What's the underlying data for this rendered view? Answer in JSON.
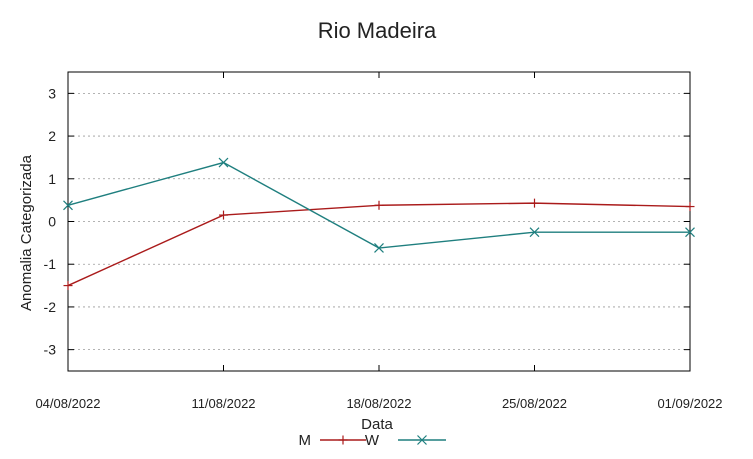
{
  "chart_data": {
    "type": "line",
    "title": "Rio Madeira",
    "xlabel": "Data",
    "ylabel": "Anomalia Categorizada",
    "x": [
      "04/08/2022",
      "11/08/2022",
      "18/08/2022",
      "25/08/2022",
      "01/09/2022"
    ],
    "yticks": [
      "3",
      "2",
      "1",
      "0",
      "-1",
      "-2",
      "-3"
    ],
    "ylim": [
      -3.5,
      3.5
    ],
    "grid": true,
    "legend_position": "bottom",
    "series": [
      {
        "name": "M",
        "color": "#aa1b1b",
        "marker": "plus",
        "values": [
          -1.5,
          0.15,
          0.38,
          0.43,
          0.35
        ]
      },
      {
        "name": "W",
        "color": "#1f7f7f",
        "marker": "cross",
        "values": [
          0.38,
          1.38,
          -0.62,
          -0.25,
          -0.25
        ]
      }
    ]
  }
}
